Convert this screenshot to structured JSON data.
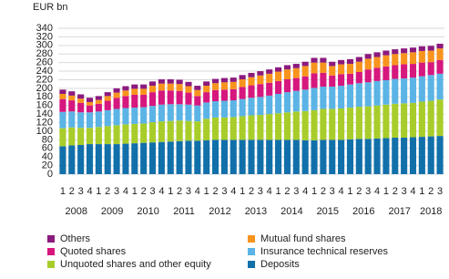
{
  "chart_data": {
    "type": "stacked_bar",
    "y_axis_label": "EUR bn",
    "categories": [
      "1",
      "2",
      "3",
      "4",
      "1",
      "2",
      "3",
      "4",
      "1",
      "2",
      "3",
      "4",
      "1",
      "2",
      "3",
      "4",
      "1",
      "2",
      "3",
      "4",
      "1",
      "2",
      "3",
      "4",
      "1",
      "2",
      "3",
      "4",
      "1",
      "2",
      "3",
      "4",
      "1",
      "2",
      "3",
      "4",
      "1",
      "2",
      "3",
      "4",
      "1",
      "2",
      "3"
    ],
    "year_labels": [
      "2008",
      "2009",
      "2010",
      "2011",
      "2012",
      "2013",
      "2014",
      "2015",
      "2016",
      "2017",
      "2018"
    ],
    "ylim": [
      0,
      340
    ],
    "yticks": [
      0,
      20,
      40,
      60,
      80,
      100,
      120,
      140,
      160,
      180,
      200,
      220,
      240,
      260,
      280,
      300,
      320,
      340
    ],
    "grid": true,
    "series": [
      {
        "name": "Deposits",
        "color": "#1170aa",
        "values": [
          65,
          67,
          68,
          70,
          70,
          70,
          70,
          71,
          72,
          73,
          74,
          75,
          76,
          77,
          78,
          78,
          79,
          80,
          80,
          80,
          80,
          80,
          80,
          80,
          80,
          80,
          80,
          79,
          79,
          80,
          80,
          80,
          81,
          82,
          82,
          83,
          84,
          85,
          85,
          86,
          87,
          88,
          89
        ]
      },
      {
        "name": "Unquoted shares and other equity",
        "color": "#a8cd2a",
        "values": [
          42,
          42,
          40,
          38,
          40,
          42,
          44,
          45,
          45,
          45,
          47,
          48,
          48,
          48,
          46,
          45,
          50,
          52,
          52,
          53,
          55,
          57,
          58,
          60,
          62,
          64,
          66,
          68,
          70,
          72,
          72,
          73,
          74,
          75,
          76,
          77,
          78,
          79,
          80,
          80,
          82,
          83,
          85
        ]
      },
      {
        "name": "Insurance technical reserves",
        "color": "#5bb4e5",
        "values": [
          38,
          37,
          36,
          36,
          36,
          37,
          38,
          38,
          38,
          38,
          38,
          39,
          39,
          38,
          38,
          37,
          38,
          38,
          39,
          39,
          40,
          41,
          42,
          43,
          45,
          47,
          48,
          50,
          52,
          52,
          52,
          53,
          54,
          55,
          56,
          57,
          57,
          58,
          58,
          59,
          59,
          60,
          60
        ]
      },
      {
        "name": "Quoted shares",
        "color": "#d6177e",
        "values": [
          30,
          26,
          22,
          16,
          18,
          22,
          26,
          28,
          30,
          29,
          32,
          33,
          32,
          31,
          28,
          22,
          24,
          26,
          26,
          26,
          28,
          29,
          30,
          30,
          30,
          30,
          30,
          31,
          34,
          32,
          26,
          27,
          25,
          26,
          30,
          31,
          32,
          32,
          33,
          32,
          32,
          30,
          32
        ]
      },
      {
        "name": "Mutual fund shares",
        "color": "#f7941d",
        "values": [
          12,
          11,
          10,
          8,
          9,
          11,
          12,
          13,
          14,
          14,
          15,
          16,
          16,
          16,
          15,
          14,
          15,
          16,
          17,
          17,
          18,
          19,
          20,
          21,
          22,
          23,
          23,
          24,
          25,
          24,
          22,
          23,
          23,
          24,
          25,
          25,
          26,
          26,
          26,
          27,
          27,
          27,
          27
        ]
      },
      {
        "name": "Others",
        "color": "#8b1a7e",
        "values": [
          10,
          10,
          10,
          10,
          9,
          9,
          10,
          10,
          10,
          10,
          10,
          10,
          10,
          10,
          10,
          10,
          10,
          10,
          10,
          10,
          10,
          10,
          10,
          10,
          10,
          10,
          10,
          10,
          11,
          11,
          10,
          10,
          11,
          11,
          11,
          11,
          11,
          11,
          11,
          11,
          11,
          11,
          11
        ]
      }
    ]
  }
}
